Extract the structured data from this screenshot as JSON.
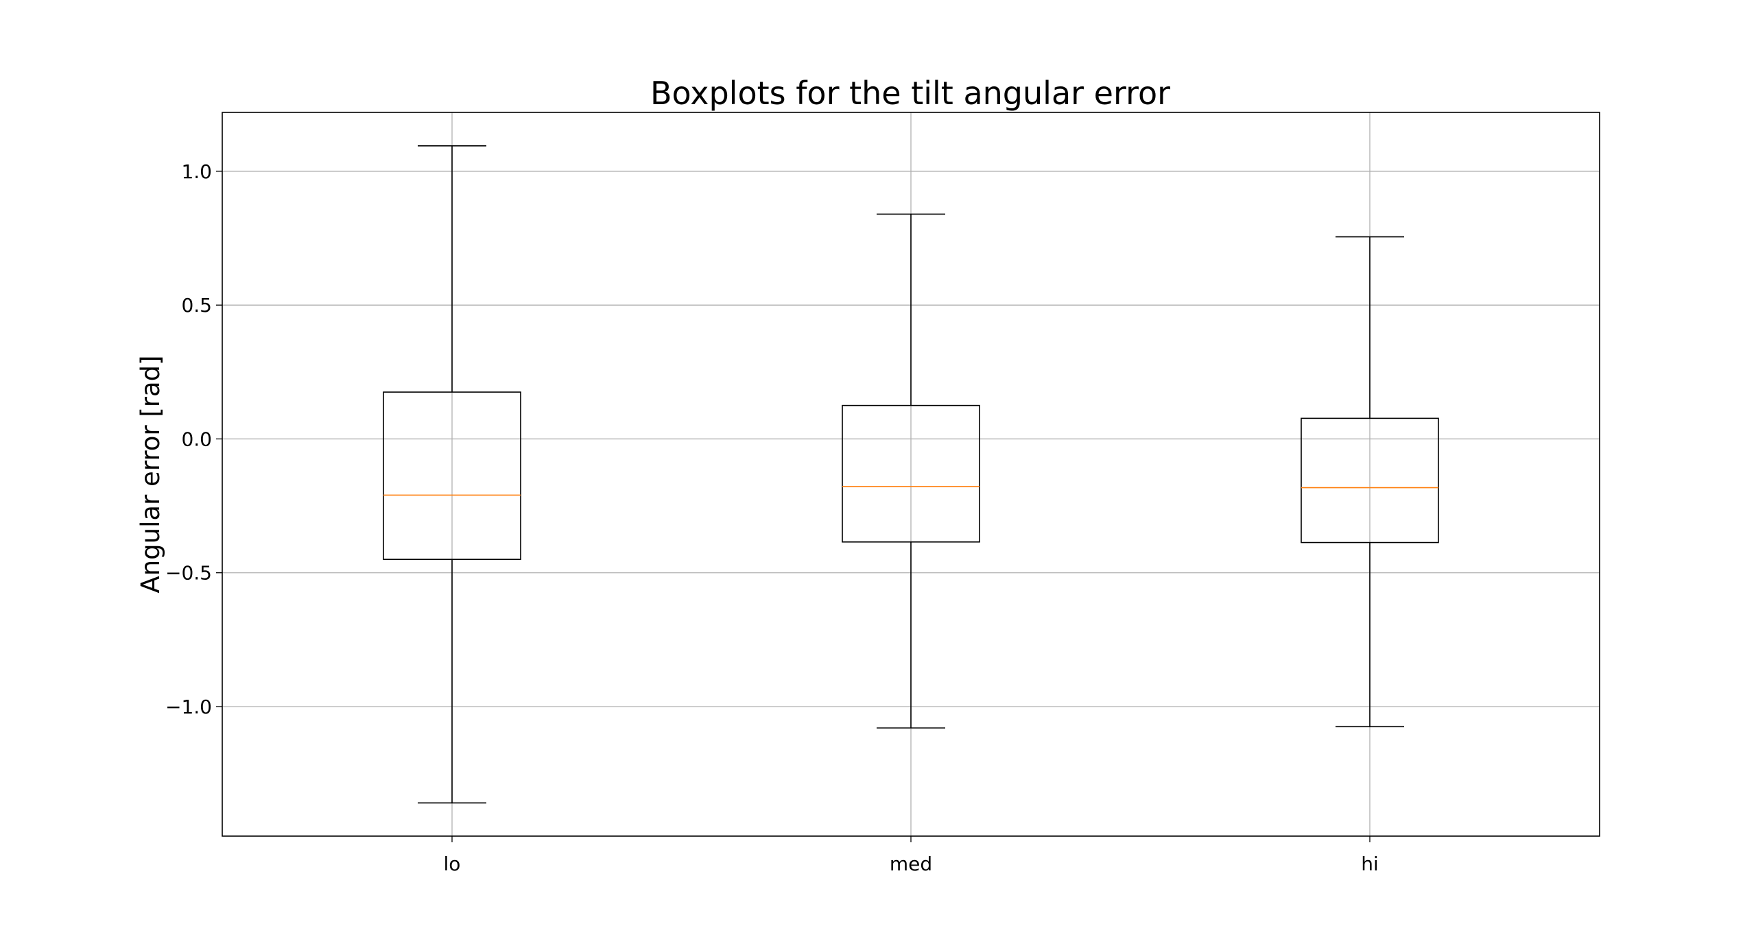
{
  "chart_data": {
    "type": "box",
    "title": "Boxplots for the tilt angular error",
    "xlabel": "",
    "ylabel": "Angular error [rad]",
    "categories": [
      "lo",
      "med",
      "hi"
    ],
    "boxes": [
      {
        "category": "lo",
        "whisker_low": -1.36,
        "q1": -0.45,
        "median": -0.21,
        "q3": 0.175,
        "whisker_high": 1.095
      },
      {
        "category": "med",
        "whisker_low": -1.08,
        "q1": -0.385,
        "median": -0.178,
        "q3": 0.125,
        "whisker_high": 0.84
      },
      {
        "category": "hi",
        "whisker_low": -1.075,
        "q1": -0.387,
        "median": -0.182,
        "q3": 0.077,
        "whisker_high": 0.755
      }
    ],
    "ylim": [
      -1.484,
      1.22
    ],
    "yticks": [
      -1.0,
      -0.5,
      0.0,
      0.5,
      1.0
    ],
    "ytick_labels": [
      "−1.0",
      "−0.5",
      "0.0",
      "0.5",
      "1.0"
    ],
    "grid": true,
    "colors": {
      "box": "#000000",
      "median": "#ff7f0e",
      "grid": "#b0b0b0",
      "frame": "#000000"
    }
  }
}
